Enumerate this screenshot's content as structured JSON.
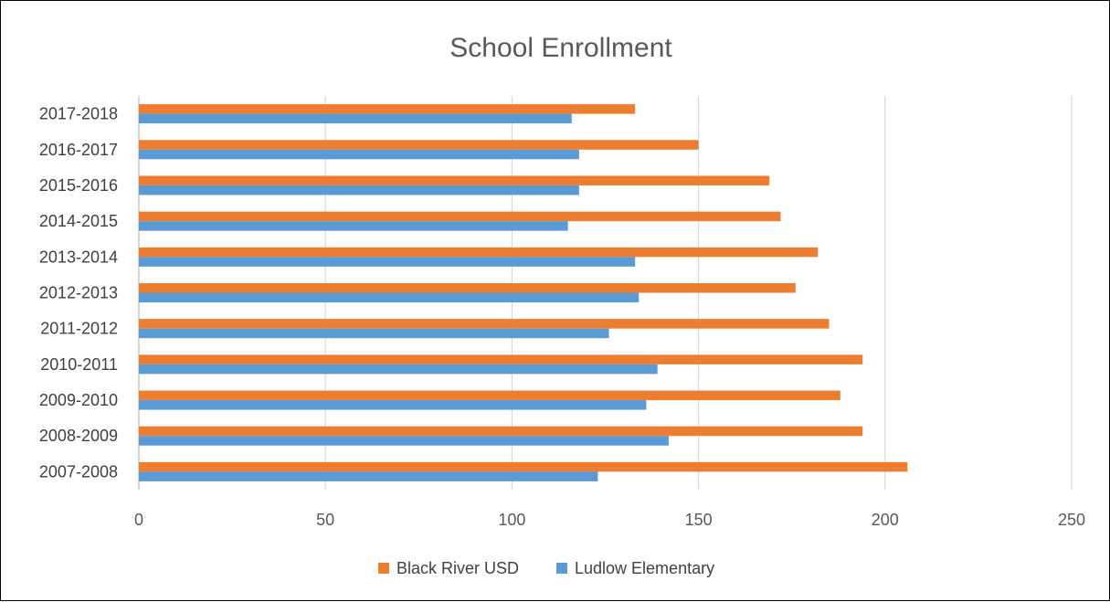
{
  "chart_data": {
    "type": "bar",
    "orientation": "horizontal",
    "title": "School Enrollment",
    "xlabel": "",
    "ylabel": "",
    "categories": [
      "2007-2008",
      "2008-2009",
      "2009-2010",
      "2010-2011",
      "2011-2012",
      "2012-2013",
      "2013-2014",
      "2014-2015",
      "2015-2016",
      "2016-2017",
      "2017-2018"
    ],
    "series": [
      {
        "name": "Black River USD",
        "color": "#ED7D31",
        "values": [
          206,
          194,
          188,
          194,
          185,
          176,
          182,
          172,
          169,
          150,
          133
        ]
      },
      {
        "name": "Ludlow Elementary",
        "color": "#5B9BD5",
        "values": [
          123,
          142,
          136,
          139,
          126,
          134,
          133,
          115,
          118,
          118,
          116
        ]
      }
    ],
    "xlim": [
      0,
      250
    ],
    "xticks": [
      "0",
      "50",
      "100",
      "150",
      "200",
      "250"
    ],
    "grid": true,
    "legend_position": "bottom"
  }
}
